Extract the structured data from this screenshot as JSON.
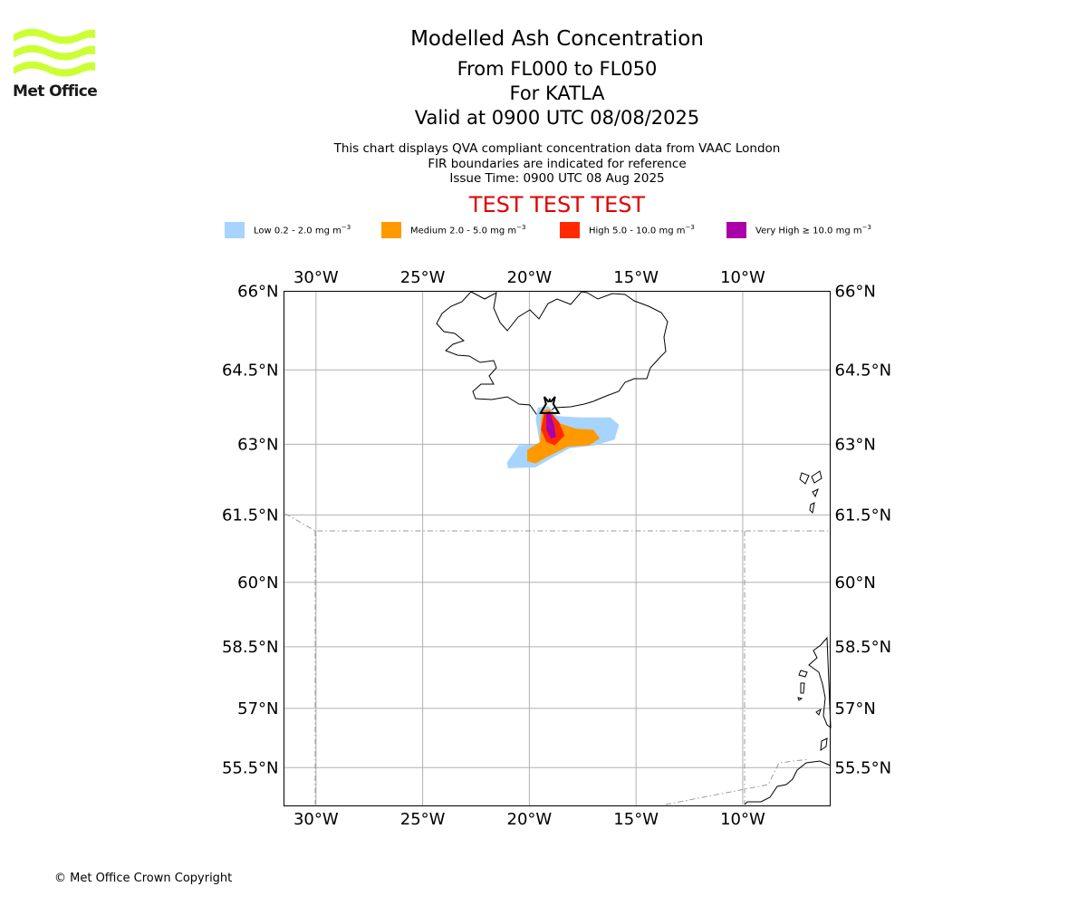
{
  "logo": {
    "text": "Met Office",
    "color": "#ccff33"
  },
  "header": {
    "title": "Modelled Ash Concentration",
    "level_range": "From FL000 to FL050",
    "volcano": "For KATLA",
    "valid_time": "Valid at 0900 UTC 08/08/2025",
    "info_lines": [
      "This chart displays QVA compliant concentration data from VAAC London",
      "FIR boundaries are indicated for reference",
      "Issue Time: 0900 UTC 08 Aug 2025"
    ],
    "test_banner": "TEST TEST TEST",
    "test_banner_color": "#e00000"
  },
  "legend": [
    {
      "label": "Low 0.2 - 2.0 mg m",
      "unit_exp": "−3",
      "color": "#a6d4ff"
    },
    {
      "label": "Medium 2.0 - 5.0 mg m",
      "unit_exp": "−3",
      "color": "#ff9900"
    },
    {
      "label": "High 5.0 - 10.0 mg m",
      "unit_exp": "−3",
      "color": "#ff2a00"
    },
    {
      "label": "Very High ≥ 10.0 mg m",
      "unit_exp": "−3",
      "color": "#aa00aa"
    }
  ],
  "map": {
    "extent": {
      "lon_min": -31.5,
      "lon_max": -5.9,
      "lat_min": 54.5,
      "lat_max": 66.0
    },
    "lon_ticks": [
      {
        "value": -30,
        "label": "30°W"
      },
      {
        "value": -25,
        "label": "25°W"
      },
      {
        "value": -20,
        "label": "20°W"
      },
      {
        "value": -15,
        "label": "15°W"
      },
      {
        "value": -10,
        "label": "10°W"
      }
    ],
    "lat_ticks": [
      {
        "value": 66,
        "label": "66°N"
      },
      {
        "value": 64.5,
        "label": "64.5°N"
      },
      {
        "value": 63,
        "label": "63°N"
      },
      {
        "value": 61.5,
        "label": "61.5°N"
      },
      {
        "value": 60,
        "label": "60°N"
      },
      {
        "value": 58.5,
        "label": "58.5°N"
      },
      {
        "value": 57,
        "label": "57°N"
      },
      {
        "value": 55.5,
        "label": "55.5°N"
      }
    ],
    "gridline_color": "#b0b0b0",
    "fir_color": "#999999",
    "ash_layers": [
      {
        "level": "Low",
        "color": "#a6d4ff",
        "points": [
          [
            -19.6,
            63.75
          ],
          [
            -19.1,
            63.78
          ],
          [
            -18.7,
            63.58
          ],
          [
            -17.6,
            63.55
          ],
          [
            -16.2,
            63.55
          ],
          [
            -15.8,
            63.4
          ],
          [
            -16.0,
            63.1
          ],
          [
            -16.9,
            62.98
          ],
          [
            -18.1,
            62.92
          ],
          [
            -19.0,
            62.7
          ],
          [
            -19.7,
            62.52
          ],
          [
            -21.0,
            62.5
          ],
          [
            -21.05,
            62.62
          ],
          [
            -20.5,
            62.98
          ],
          [
            -19.5,
            63.0
          ],
          [
            -19.7,
            63.5
          ]
        ]
      },
      {
        "level": "Medium",
        "color": "#ff9900",
        "points": [
          [
            -19.35,
            63.7
          ],
          [
            -19.05,
            63.72
          ],
          [
            -18.7,
            63.45
          ],
          [
            -17.8,
            63.32
          ],
          [
            -17.0,
            63.3
          ],
          [
            -16.7,
            63.12
          ],
          [
            -17.2,
            62.98
          ],
          [
            -18.2,
            62.95
          ],
          [
            -19.2,
            62.73
          ],
          [
            -19.7,
            62.6
          ],
          [
            -20.1,
            62.65
          ],
          [
            -20.1,
            62.88
          ],
          [
            -19.5,
            63.05
          ],
          [
            -19.45,
            63.5
          ]
        ]
      },
      {
        "level": "High",
        "color": "#ff2a00",
        "points": [
          [
            -19.3,
            63.65
          ],
          [
            -19.05,
            63.68
          ],
          [
            -18.6,
            63.45
          ],
          [
            -18.35,
            63.18
          ],
          [
            -18.8,
            62.98
          ],
          [
            -19.2,
            63.05
          ],
          [
            -19.45,
            63.3
          ]
        ]
      },
      {
        "level": "Very High",
        "color": "#aa00aa",
        "points": [
          [
            -19.2,
            63.65
          ],
          [
            -19.05,
            63.67
          ],
          [
            -18.85,
            63.42
          ],
          [
            -18.75,
            63.15
          ],
          [
            -19.0,
            63.12
          ],
          [
            -19.2,
            63.3
          ]
        ]
      }
    ],
    "source_marker_position": {
      "lon": -19.05,
      "lat": 63.75
    }
  },
  "footer": {
    "copyright": "© Met Office Crown Copyright"
  }
}
